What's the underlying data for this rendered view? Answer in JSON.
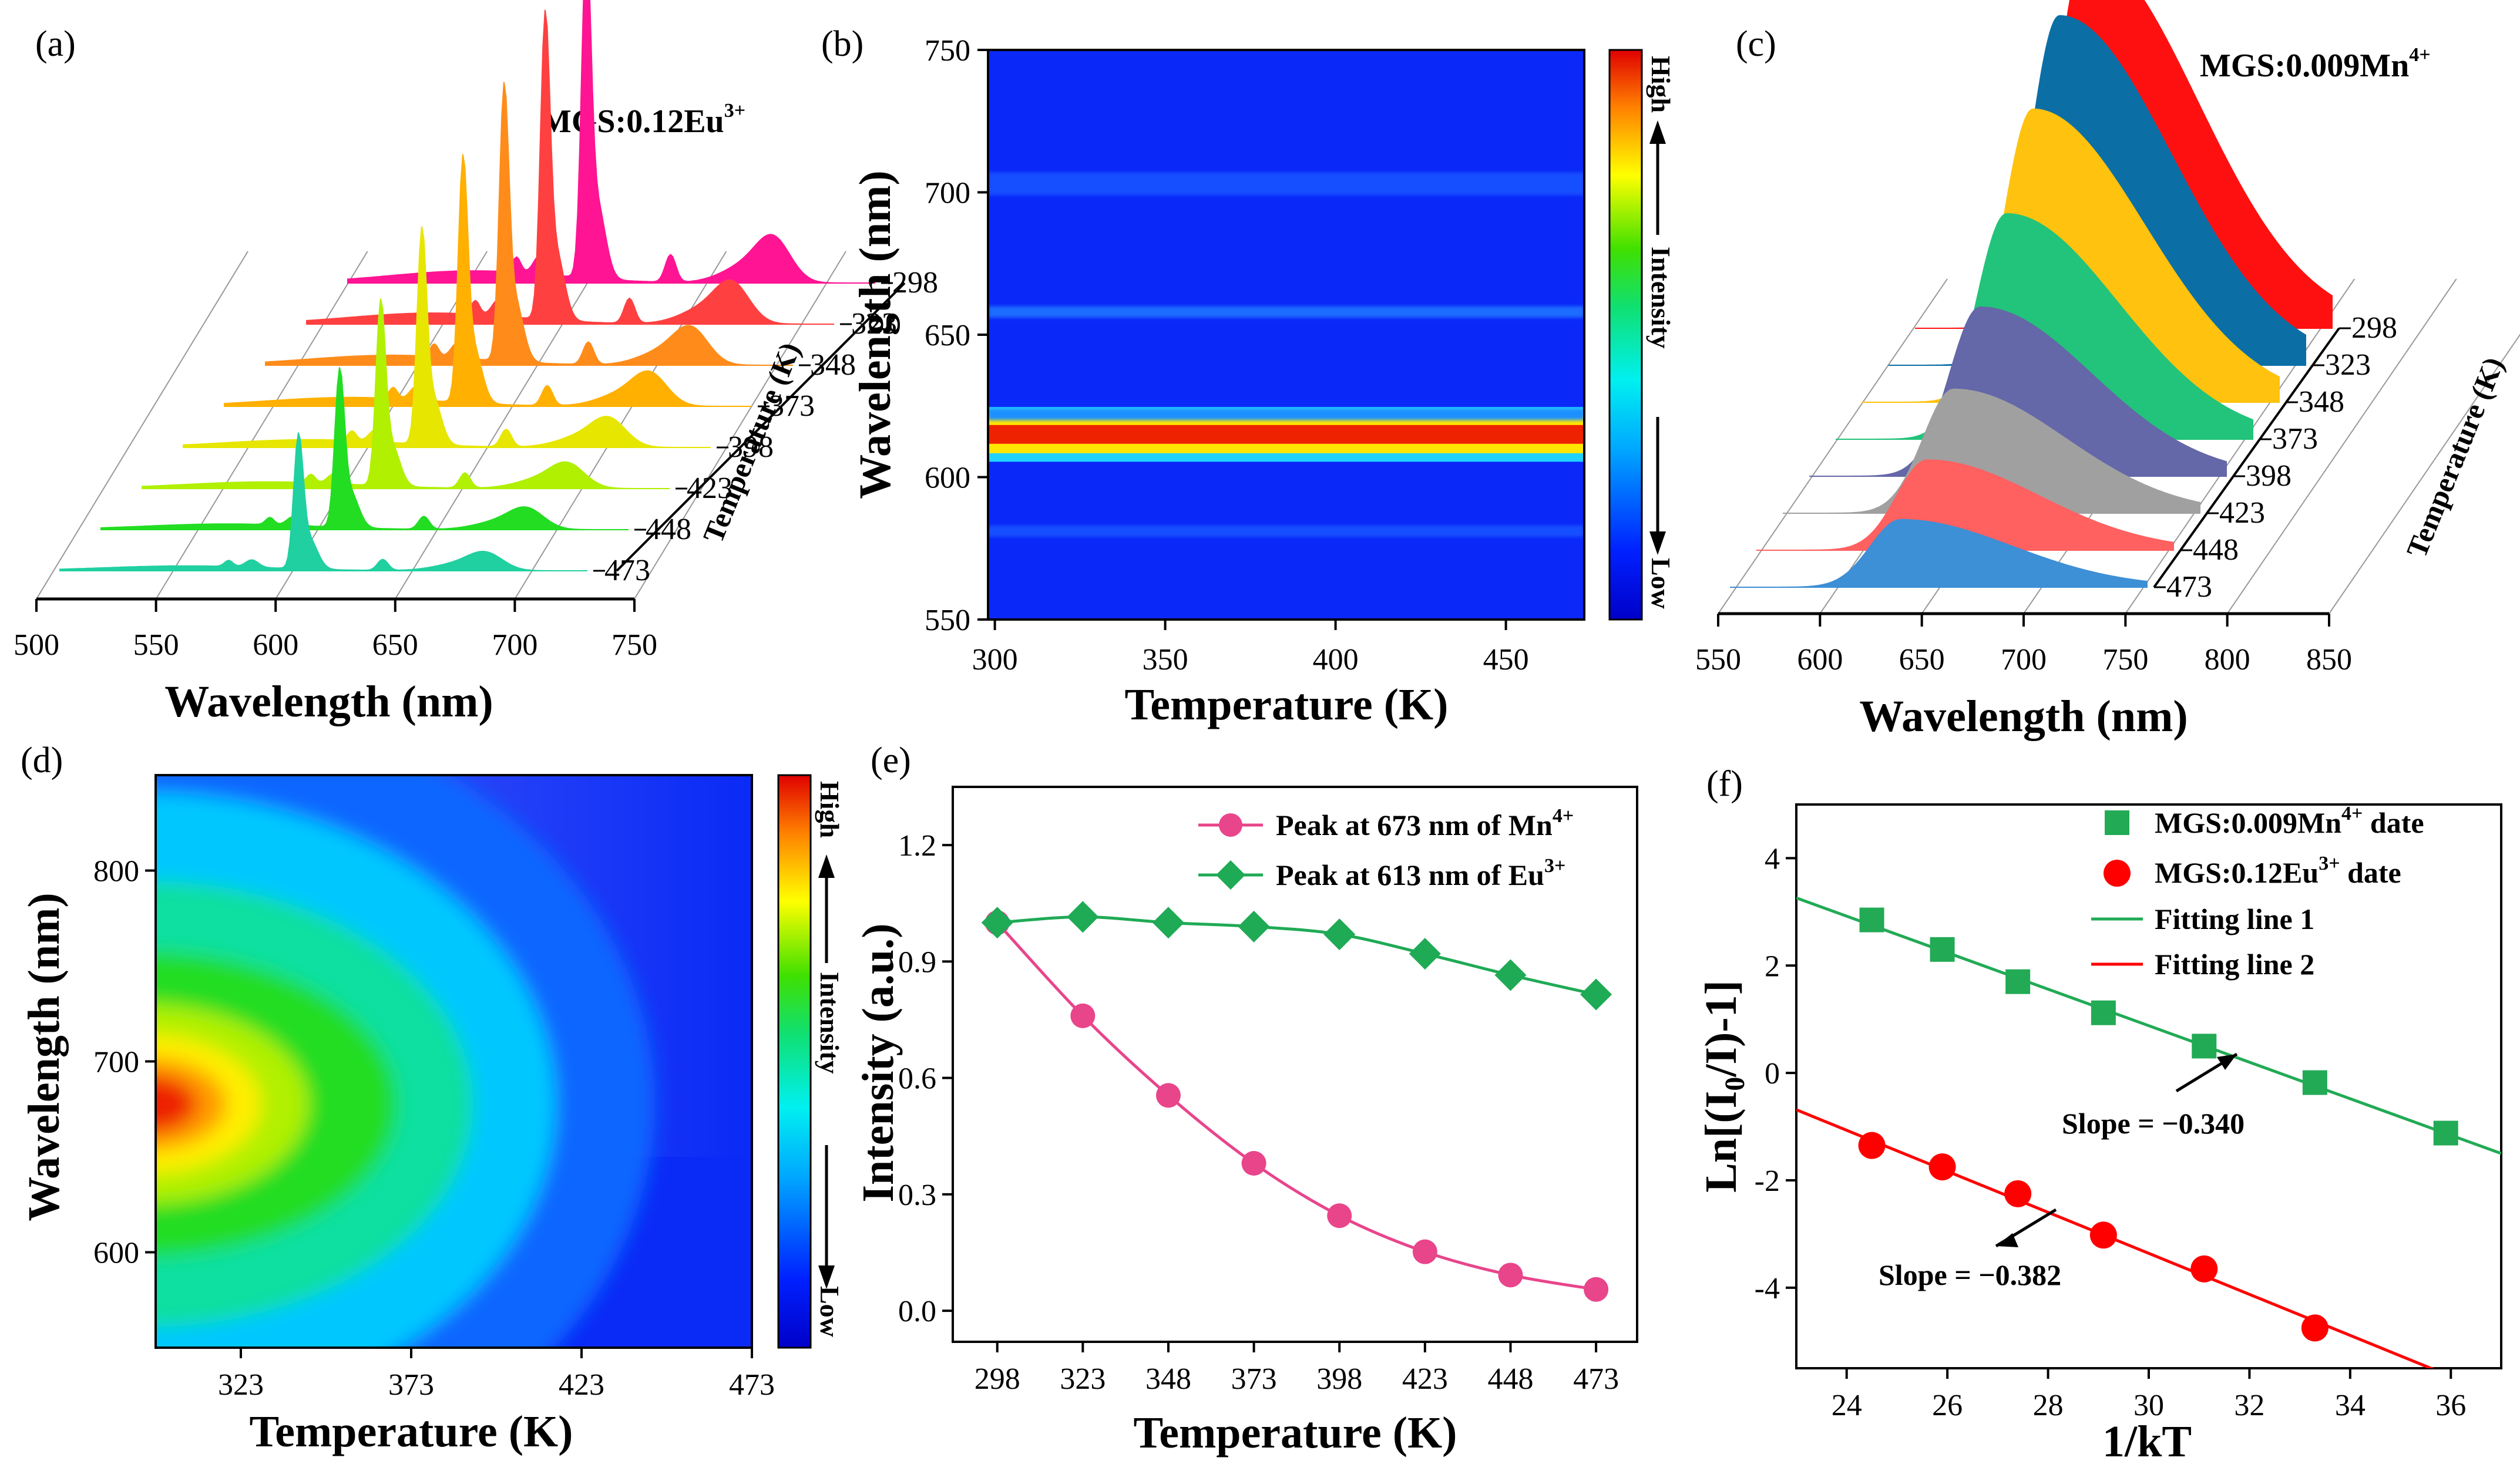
{
  "panels": {
    "a": {
      "label": "(a)",
      "title_main": "MGS:0.12Eu",
      "title_sup": "3+",
      "xlabel": "Wavelength (nm)",
      "zlabel": "Temperature (K)",
      "xticks": [
        "500",
        "550",
        "600",
        "650",
        "700",
        "750"
      ],
      "temps": [
        "298",
        "323",
        "348",
        "373",
        "398",
        "423",
        "448",
        "473"
      ],
      "colors": [
        "#ff1493",
        "#ff4040",
        "#ff8c1a",
        "#ffb000",
        "#e6e600",
        "#b0f000",
        "#22dd22",
        "#20d0a0"
      ],
      "scales": [
        1.0,
        0.91,
        0.82,
        0.73,
        0.64,
        0.55,
        0.47,
        0.4
      ]
    },
    "b": {
      "label": "(b)",
      "xlabel": "Temperature (K)",
      "ylabel": "Wavelength (nm)",
      "xticks": [
        "300",
        "350",
        "400",
        "450"
      ],
      "yticks": [
        "550",
        "600",
        "650",
        "700",
        "750"
      ],
      "cb_high": "High",
      "cb_mid": "Intensity",
      "cb_low": "Low"
    },
    "c": {
      "label": "(c)",
      "title_main": "MGS:0.009Mn",
      "title_sup": "4+",
      "xlabel": "Wavelength (nm)",
      "zlabel": "Temperature (K)",
      "xticks": [
        "550",
        "600",
        "650",
        "700",
        "750",
        "800",
        "850"
      ],
      "temps": [
        "298",
        "323",
        "348",
        "373",
        "398",
        "423",
        "448",
        "473"
      ],
      "colors": [
        "#ff1010",
        "#0b6fa6",
        "#ffc20e",
        "#22c37a",
        "#6467a8",
        "#a0a0a0",
        "#ff6060",
        "#3d8fd6"
      ],
      "scales": [
        1.0,
        0.93,
        0.78,
        0.6,
        0.45,
        0.33,
        0.24,
        0.18
      ]
    },
    "d": {
      "label": "(d)",
      "xlabel": "Temperature (K)",
      "ylabel": "Wavelength (nm)",
      "xticks": [
        "323",
        "373",
        "423",
        "473"
      ],
      "yticks": [
        "600",
        "700",
        "800"
      ],
      "cb_high": "High",
      "cb_mid": "Intensity",
      "cb_low": "Low"
    },
    "e": {
      "label": "(e)",
      "xlabel": "Temperature (K)",
      "ylabel": "Intensity (a.u.)",
      "yticks": [
        "0.0",
        "0.3",
        "0.6",
        "0.9",
        "1.2"
      ],
      "legend1_main": "Peak at 673 nm of Mn",
      "legend1_sup": "4+",
      "legend2_main": "Peak at 613 nm of Eu",
      "legend2_sup": "3+"
    },
    "f": {
      "label": "(f)",
      "xlabel": "1/kT",
      "ylabel_pre": "Ln[(I",
      "ylabel_sub": "0",
      "ylabel_post": "/I)-1]",
      "xticks": [
        "24",
        "26",
        "28",
        "30",
        "32",
        "34",
        "36"
      ],
      "yticks": [
        "4",
        "2",
        "0",
        "-2",
        "-4"
      ],
      "legend1_main": "MGS:0.009Mn",
      "legend1_sup": "4+",
      "legend1_tail": " date",
      "legend2_main": "MGS:0.12Eu",
      "legend2_sup": "3+",
      "legend2_tail": " date",
      "legend3": "Fitting line 1",
      "legend4": "Fitting line 2",
      "slope1": "Slope = −0.340",
      "slope2": "Slope = −0.382"
    }
  },
  "chart_data": [
    {
      "panel": "a",
      "type": "area",
      "title": "MGS:0.12Eu3+",
      "xlabel": "Wavelength (nm)",
      "xlim": [
        500,
        750
      ],
      "series_by": "Temperature (K)",
      "temperatures": [
        298,
        323,
        348,
        373,
        398,
        423,
        448,
        473
      ],
      "peaks_nm": [
        591,
        613,
        653,
        702
      ],
      "relative_peak_intensity": [
        1.0,
        0.91,
        0.82,
        0.73,
        0.64,
        0.55,
        0.47,
        0.4
      ]
    },
    {
      "panel": "b",
      "type": "heatmap",
      "xlabel": "Temperature (K)",
      "ylabel": "Wavelength (nm)",
      "xlim": [
        298,
        473
      ],
      "ylim": [
        550,
        750
      ],
      "bands_nm": [
        {
          "center": 615,
          "halfwidth": 3,
          "level": 1.0
        },
        {
          "center": 622,
          "halfwidth": 2,
          "level": 0.5
        },
        {
          "center": 658,
          "halfwidth": 2,
          "level": 0.3
        },
        {
          "center": 703,
          "halfwidth": 4,
          "level": 0.22
        },
        {
          "center": 581,
          "halfwidth": 2,
          "level": 0.18
        }
      ]
    },
    {
      "panel": "c",
      "type": "area",
      "title": "MGS:0.009Mn4+",
      "xlabel": "Wavelength (nm)",
      "xlim": [
        550,
        850
      ],
      "series_by": "Temperature (K)",
      "temperatures": [
        298,
        323,
        348,
        373,
        398,
        423,
        448,
        473
      ],
      "peak_nm": 673,
      "relative_peak_intensity": [
        1.0,
        0.93,
        0.78,
        0.6,
        0.45,
        0.33,
        0.24,
        0.18
      ]
    },
    {
      "panel": "d",
      "type": "heatmap",
      "xlabel": "Temperature (K)",
      "ylabel": "Wavelength (nm)",
      "xlim": [
        298,
        473
      ],
      "ylim": [
        550,
        850
      ],
      "peak_nm": 673,
      "peak_width_nm": [
        28,
        52
      ],
      "decay_temperature_K": 65
    },
    {
      "panel": "e",
      "type": "line",
      "xlabel": "Temperature (K)",
      "ylabel": "Intensity (a.u.)",
      "x": [
        298,
        323,
        348,
        373,
        398,
        423,
        448,
        473
      ],
      "ylim": [
        -0.08,
        1.35
      ],
      "series": [
        {
          "name": "Peak at 673 nm of Mn4+",
          "color": "#e8458b",
          "marker": "circle",
          "values": [
            1.0,
            0.76,
            0.555,
            0.38,
            0.245,
            0.152,
            0.092,
            0.055
          ]
        },
        {
          "name": "Peak at 613 nm of Eu3+",
          "color": "#1faa55",
          "marker": "diamond",
          "values": [
            1.0,
            1.015,
            1.0,
            0.99,
            0.97,
            0.92,
            0.865,
            0.815
          ]
        }
      ]
    },
    {
      "panel": "f",
      "type": "scatter",
      "xlabel": "1/kT",
      "ylabel": "Ln[(I0/I)-1]",
      "xlim": [
        23,
        37
      ],
      "ylim": [
        -5.5,
        5
      ],
      "series": [
        {
          "name": "MGS:0.009Mn4+ date",
          "color": "#22aa55",
          "marker": "square",
          "x": [
            24.5,
            25.9,
            27.4,
            29.1,
            31.1,
            33.3,
            35.9
          ],
          "y": [
            2.85,
            2.3,
            1.7,
            1.12,
            0.5,
            -0.18,
            -1.12
          ]
        },
        {
          "name": "MGS:0.12Eu3+ date",
          "color": "#ff0000",
          "marker": "circle",
          "x": [
            24.5,
            25.9,
            27.4,
            29.1,
            31.1,
            33.3
          ],
          "y": [
            -1.35,
            -1.75,
            -2.25,
            -3.02,
            -3.65,
            -4.75
          ]
        }
      ],
      "fits": [
        {
          "name": "Fitting line 1",
          "color": "#22aa55",
          "slope": -0.34,
          "intercept": 11.08,
          "x_range": [
            23,
            37
          ]
        },
        {
          "name": "Fitting line 2",
          "color": "#ff0000",
          "slope": -0.382,
          "intercept": 8.1,
          "x_range": [
            23,
            37
          ]
        }
      ],
      "annotations": [
        "Slope = -0.340",
        "Slope = -0.382"
      ]
    }
  ]
}
